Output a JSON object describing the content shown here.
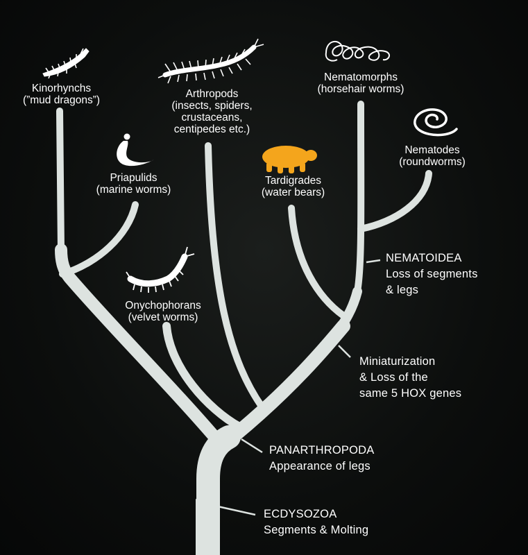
{
  "colors": {
    "branch": "#dde3e0",
    "background": "#0c0e0d",
    "highlight": "#f4a51c",
    "text": "#ffffff"
  },
  "taxa": {
    "kinorhynchs": {
      "name": "Kinorhynchs",
      "common": "(”mud dragons”)",
      "icon": "kinorhynch-icon"
    },
    "priapulids": {
      "name": "Priapulids",
      "common": "(marine worms)",
      "icon": "priapulid-icon"
    },
    "arthropods": {
      "name": "Arthropods",
      "common1": "(insects, spiders,",
      "common2": "crustaceans,",
      "common3": "centipedes etc.)",
      "icon": "centipede-icon"
    },
    "onychophorans": {
      "name": "Onychophorans",
      "common": "(velvet worms)",
      "icon": "velvet-worm-icon"
    },
    "tardigrades": {
      "name": "Tardigrades",
      "common": "(water bears)",
      "icon": "water-bear-icon"
    },
    "nematomorphs": {
      "name": "Nematomorphs",
      "common": "(horsehair worms)",
      "icon": "horsehair-worm-icon"
    },
    "nematodes": {
      "name": "Nematodes",
      "common": "(roundworms)",
      "icon": "roundworm-icon"
    }
  },
  "annotations": {
    "nematoidea": {
      "line1": "NEMATOIDEA",
      "line2": "Loss of segments",
      "line3": "& legs"
    },
    "miniaturization": {
      "line1": "Miniaturization",
      "line2": "& Loss of the",
      "line3": "same 5 HOX genes"
    },
    "panarthropoda": {
      "line1": "PANARTHROPODA",
      "line2": "Appearance of legs"
    },
    "ecdysozoa": {
      "line1": "ECDYSOZOA",
      "line2": "Segments & Molting"
    }
  }
}
